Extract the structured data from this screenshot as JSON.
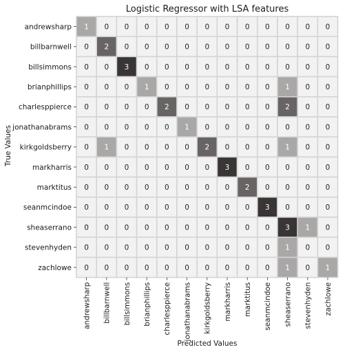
{
  "chart_data": {
    "type": "heatmap",
    "title": "Logistic Regressor with LSA features",
    "xlabel": "Predicted Values",
    "ylabel": "True Values",
    "row_labels": [
      "andrewsharp",
      "billbarnwell",
      "billsimmons",
      "brianphillips",
      "charlesppierce",
      "jonathanabrams",
      "kirkgoldsberry",
      "markharris",
      "marktitus",
      "seanmcindoe",
      "sheaserrano",
      "stevenhyden",
      "zachlowe"
    ],
    "col_labels": [
      "andrewsharp",
      "billbarnwell",
      "billsimmons",
      "brianphillips",
      "charlesppierce",
      "jonathanabrams",
      "kirkgoldsberry",
      "markharris",
      "marktitus",
      "seanmcindoe",
      "sheaserrano",
      "stevenhyden",
      "zachlowe"
    ],
    "values": [
      [
        1,
        0,
        0,
        0,
        0,
        0,
        0,
        0,
        0,
        0,
        0,
        0,
        0
      ],
      [
        0,
        2,
        0,
        0,
        0,
        0,
        0,
        0,
        0,
        0,
        0,
        0,
        0
      ],
      [
        0,
        0,
        3,
        0,
        0,
        0,
        0,
        0,
        0,
        0,
        0,
        0,
        0
      ],
      [
        0,
        0,
        0,
        1,
        0,
        0,
        0,
        0,
        0,
        0,
        1,
        0,
        0
      ],
      [
        0,
        0,
        0,
        0,
        2,
        0,
        0,
        0,
        0,
        0,
        2,
        0,
        0
      ],
      [
        0,
        0,
        0,
        0,
        0,
        1,
        0,
        0,
        0,
        0,
        0,
        0,
        0
      ],
      [
        0,
        1,
        0,
        0,
        0,
        0,
        2,
        0,
        0,
        0,
        1,
        0,
        0
      ],
      [
        0,
        0,
        0,
        0,
        0,
        0,
        0,
        3,
        0,
        0,
        0,
        0,
        0
      ],
      [
        0,
        0,
        0,
        0,
        0,
        0,
        0,
        0,
        2,
        0,
        0,
        0,
        0
      ],
      [
        0,
        0,
        0,
        0,
        0,
        0,
        0,
        0,
        0,
        3,
        0,
        0,
        0
      ],
      [
        0,
        0,
        0,
        0,
        0,
        0,
        0,
        0,
        0,
        0,
        3,
        1,
        0
      ],
      [
        0,
        0,
        0,
        0,
        0,
        0,
        0,
        0,
        0,
        0,
        1,
        0,
        0
      ],
      [
        0,
        0,
        0,
        0,
        0,
        0,
        0,
        0,
        0,
        0,
        1,
        0,
        1
      ]
    ],
    "value_range": [
      0,
      3
    ],
    "colormap": [
      "#f2f2f2",
      "#aaa7a7",
      "#686464",
      "#3a3535"
    ],
    "grid": true,
    "legend": "none"
  }
}
